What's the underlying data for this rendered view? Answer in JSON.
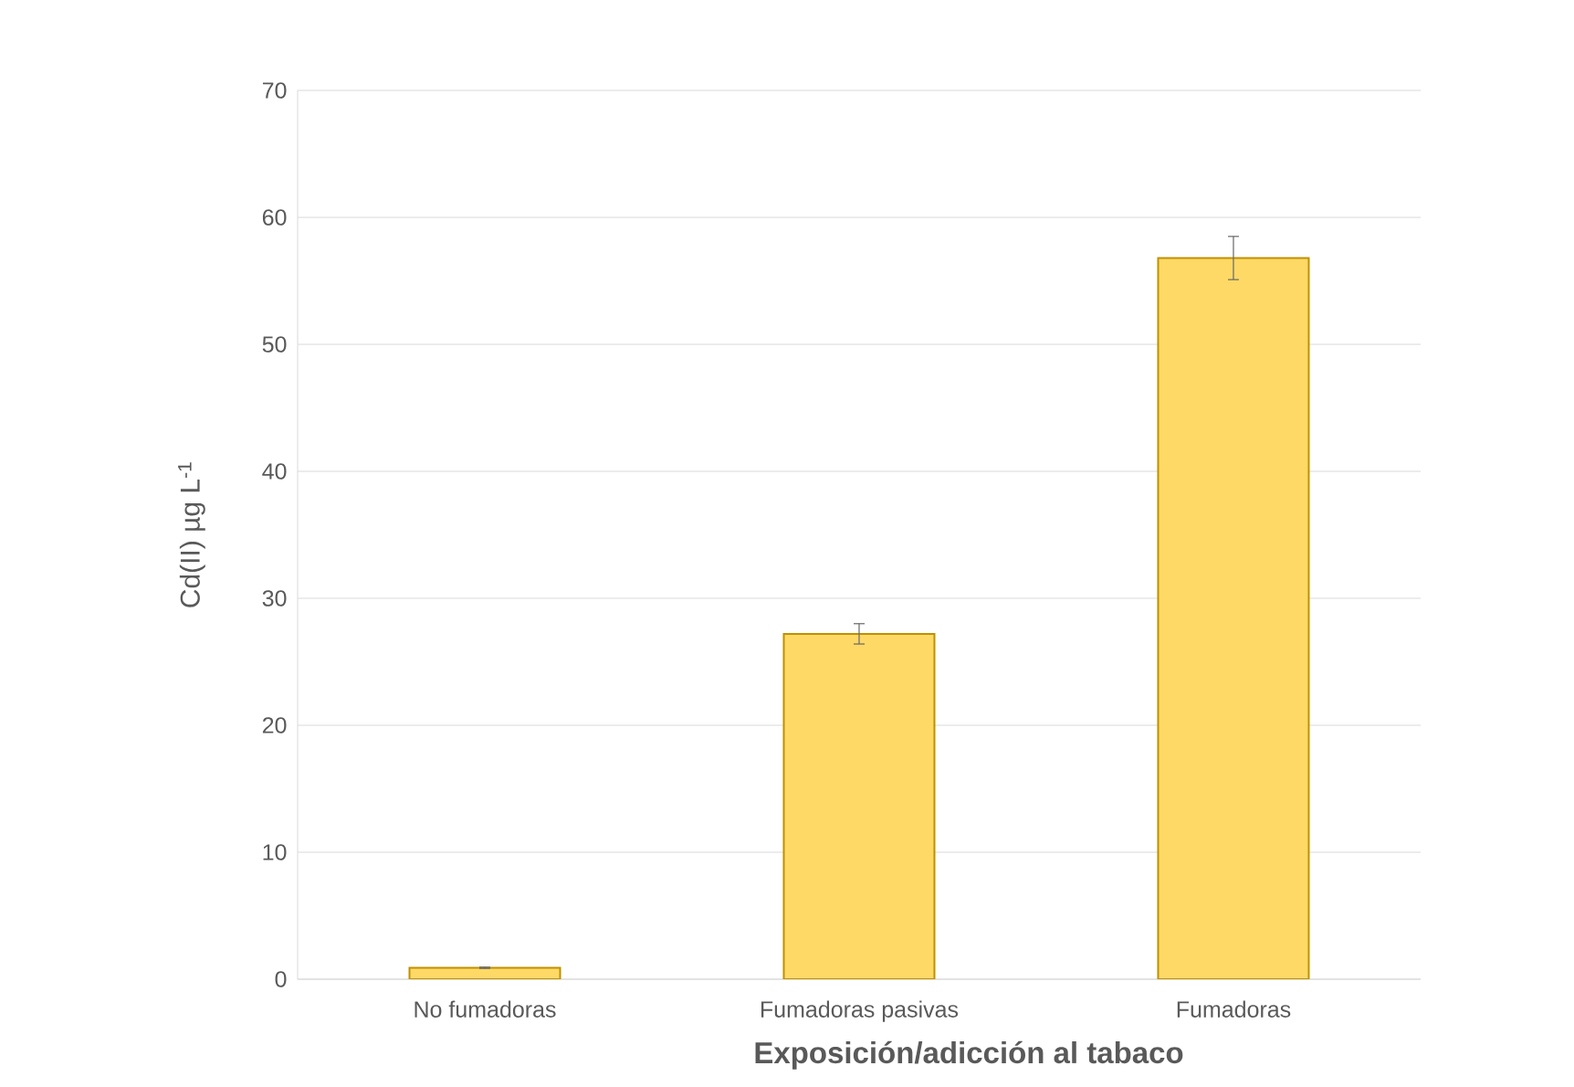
{
  "chart_data": {
    "type": "bar",
    "xlabel": "Exposición/adicción al tabaco",
    "ylabel": "Cd(II) µg L$^{-1}$",
    "categories": [
      "No fumadoras",
      "Fumadoras pasivas",
      "Fumadoras"
    ],
    "values": [
      0.9,
      27.2,
      56.8
    ],
    "errors": [
      0.05,
      0.8,
      1.7
    ],
    "color": "#ffd966",
    "ylim": [
      0,
      70
    ],
    "yticks": [
      0,
      10,
      20,
      30,
      40,
      50,
      60,
      70
    ],
    "grid": "y"
  }
}
